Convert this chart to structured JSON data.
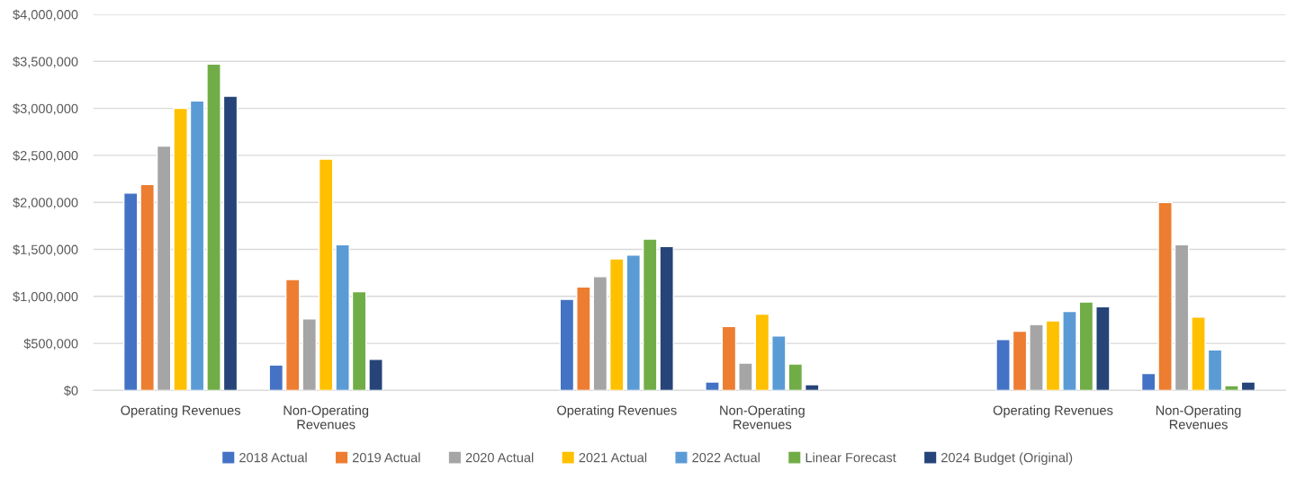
{
  "chart_data": {
    "type": "bar",
    "categories": [
      "Operating Revenues",
      "Non-Operating\nRevenues",
      null,
      "Operating Revenues",
      "Non-Operating\nRevenues",
      null,
      "Operating Revenues",
      "Non-Operating\nRevenues"
    ],
    "series": [
      {
        "name": "2018 Actual",
        "color": "#4472c4",
        "values": [
          2100000,
          270000,
          null,
          970000,
          90000,
          null,
          540000,
          180000
        ]
      },
      {
        "name": "2019 Actual",
        "color": "#ed7d31",
        "values": [
          2190000,
          1180000,
          null,
          1100000,
          680000,
          null,
          630000,
          2000000
        ]
      },
      {
        "name": "2020 Actual",
        "color": "#a5a5a5",
        "values": [
          2600000,
          760000,
          null,
          1210000,
          290000,
          null,
          700000,
          1550000
        ]
      },
      {
        "name": "2021 Actual",
        "color": "#ffc000",
        "values": [
          3000000,
          2460000,
          null,
          1400000,
          810000,
          null,
          740000,
          780000
        ]
      },
      {
        "name": "2022 Actual",
        "color": "#5b9bd5",
        "values": [
          3080000,
          1550000,
          null,
          1440000,
          580000,
          null,
          840000,
          430000
        ]
      },
      {
        "name": "Linear Forecast",
        "color": "#70ad47",
        "values": [
          3470000,
          1050000,
          null,
          1610000,
          280000,
          null,
          940000,
          50000
        ]
      },
      {
        "name": "2024 Budget (Original)",
        "color": "#264478",
        "values": [
          3130000,
          330000,
          null,
          1530000,
          60000,
          null,
          890000,
          90000
        ]
      }
    ],
    "ylim": [
      0,
      4000000
    ],
    "yticks": [
      {
        "value": 0,
        "label": "$0"
      },
      {
        "value": 500000,
        "label": "$500,000"
      },
      {
        "value": 1000000,
        "label": "$1,000,000"
      },
      {
        "value": 1500000,
        "label": "$1,500,000"
      },
      {
        "value": 2000000,
        "label": "$2,000,000"
      },
      {
        "value": 2500000,
        "label": "$2,500,000"
      },
      {
        "value": 3000000,
        "label": "$3,000,000"
      },
      {
        "value": 3500000,
        "label": "$3,500,000"
      },
      {
        "value": 4000000,
        "label": "$4,000,000"
      }
    ],
    "grid": "y",
    "legend": "bottom"
  }
}
